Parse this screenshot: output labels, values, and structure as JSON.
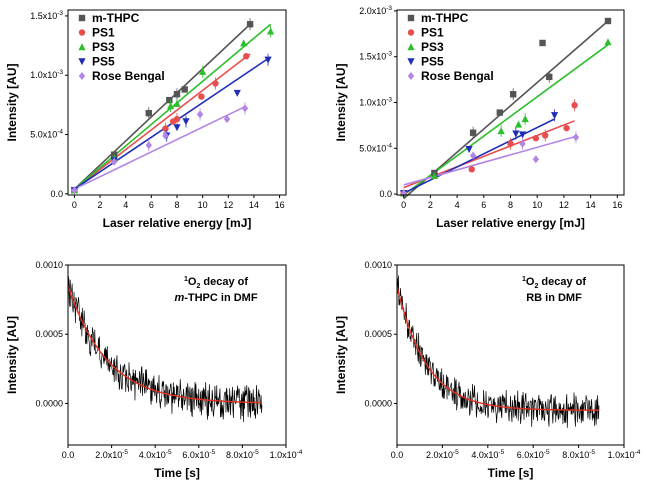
{
  "chart_data": [
    {
      "type": "scatter",
      "panel": "top-left",
      "xlabel": "Laser relative energy [mJ]",
      "ylabel": "Intensity [AU]",
      "xlim": [
        -0.5,
        16.5
      ],
      "ylim": [
        -1e-05,
        0.00155
      ],
      "xticks": [
        0,
        2,
        4,
        6,
        8,
        10,
        12,
        14,
        16
      ],
      "yticks": [
        {
          "value": 0,
          "label": "0.0"
        },
        {
          "value": 0.0005,
          "label": "5.0x10-4"
        },
        {
          "value": 0.001,
          "label": "1.0x10-3"
        },
        {
          "value": 0.0015,
          "label": "1.5x10-3"
        }
      ],
      "legend_position": "top-left",
      "series": [
        {
          "name": "m-THPC",
          "color": "#555555",
          "marker": "square",
          "x": [
            0,
            3.1,
            5.8,
            7.4,
            8.0,
            8.6,
            13.7
          ],
          "y": [
            3e-05,
            0.00033,
            0.00068,
            0.00079,
            0.00084,
            0.00088,
            0.00143
          ],
          "fit": [
            [
              0,
              4e-05
            ],
            [
              13.7,
              0.00143
            ]
          ]
        },
        {
          "name": "PS1",
          "color": "#e84e4e",
          "marker": "circle",
          "x": [
            0,
            3.1,
            7.1,
            7.7,
            8.0,
            9.9,
            11.0,
            13.4
          ],
          "y": [
            3e-05,
            0.00028,
            0.00055,
            0.00061,
            0.00063,
            0.00082,
            0.00093,
            0.00116
          ],
          "fit": [
            [
              0,
              4e-05
            ],
            [
              13.7,
              0.00118
            ]
          ]
        },
        {
          "name": "PS3",
          "color": "#2bbf2b",
          "marker": "triangle-up",
          "x": [
            0,
            3.1,
            7.5,
            8.0,
            10.0,
            13.2,
            15.3
          ],
          "y": [
            3e-05,
            0.0003,
            0.00074,
            0.00076,
            0.00103,
            0.00127,
            0.00137
          ],
          "fit": [
            [
              0,
              4e-05
            ],
            [
              15.3,
              0.00143
            ]
          ]
        },
        {
          "name": "PS5",
          "color": "#1f2db8",
          "marker": "triangle-down",
          "x": [
            0,
            3.1,
            7.2,
            8.0,
            8.7,
            12.7,
            15.1
          ],
          "y": [
            3e-05,
            0.00028,
            0.00049,
            0.00056,
            0.00061,
            0.00085,
            0.00113
          ],
          "fit": [
            [
              0,
              4e-05
            ],
            [
              15.1,
              0.00114
            ]
          ]
        },
        {
          "name": "Rose Bengal",
          "color": "#b385e6",
          "marker": "diamond",
          "x": [
            0,
            3.1,
            5.8,
            7.1,
            9.8,
            11.9,
            13.3
          ],
          "y": [
            3e-05,
            0.00027,
            0.00041,
            0.00049,
            0.00067,
            0.00063,
            0.00072
          ],
          "fit": [
            [
              0,
              4e-05
            ],
            [
              13.4,
              0.00074
            ]
          ]
        }
      ]
    },
    {
      "type": "scatter",
      "panel": "top-right",
      "xlabel": "Laser relative energy [mJ]",
      "ylabel": "Intensity [AU]",
      "xlim": [
        -0.5,
        16.5
      ],
      "ylim": [
        -1e-05,
        0.00201
      ],
      "xticks": [
        0,
        2,
        4,
        6,
        8,
        10,
        12,
        14,
        16
      ],
      "yticks": [
        {
          "value": 0,
          "label": "0.0"
        },
        {
          "value": 0.0005,
          "label": "5.0x10-4"
        },
        {
          "value": 0.001,
          "label": "1.0x10-3"
        },
        {
          "value": 0.0015,
          "label": "1.5x10-3"
        },
        {
          "value": 0.002,
          "label": "2.0x10-3"
        }
      ],
      "legend_position": "top-left",
      "series": [
        {
          "name": "m-THPC",
          "color": "#555555",
          "marker": "square",
          "x": [
            0,
            2.3,
            5.2,
            7.2,
            8.2,
            10.4,
            10.9,
            15.3
          ],
          "y": [
            1e-05,
            0.00023,
            0.00067,
            0.00089,
            0.00109,
            0.00165,
            0.00128,
            0.00189
          ],
          "fit": [
            [
              0,
              -5e-05
            ],
            [
              15.3,
              0.00189
            ]
          ]
        },
        {
          "name": "PS1",
          "color": "#e84e4e",
          "marker": "circle",
          "x": [
            0,
            5.1,
            8.0,
            9.9,
            10.6,
            12.2,
            12.8
          ],
          "y": [
            1e-05,
            0.00027,
            0.00055,
            0.00061,
            0.00064,
            0.00072,
            0.00097
          ],
          "fit": [
            [
              0,
              7e-05
            ],
            [
              12.8,
              0.0008
            ]
          ]
        },
        {
          "name": "PS3",
          "color": "#2bbf2b",
          "marker": "triangle-up",
          "x": [
            0,
            2.3,
            7.3,
            8.6,
            9.1,
            15.3
          ],
          "y": [
            1e-05,
            0.0002,
            0.00069,
            0.00076,
            0.00082,
            0.00166
          ],
          "fit": [
            [
              0,
              -1e-05
            ],
            [
              15.3,
              0.00163
            ]
          ]
        },
        {
          "name": "PS5",
          "color": "#1f2db8",
          "marker": "triangle-down",
          "x": [
            0,
            4.9,
            8.4,
            8.9,
            11.3
          ],
          "y": [
            1e-05,
            0.00049,
            0.00066,
            0.00065,
            0.00086
          ],
          "fit": [
            [
              0,
              1e-05
            ],
            [
              11.3,
              0.00082
            ]
          ]
        },
        {
          "name": "Rose Bengal",
          "color": "#b385e6",
          "marker": "diamond",
          "x": [
            0,
            5.2,
            8.9,
            9.9,
            12.9
          ],
          "y": [
            1e-05,
            0.00042,
            0.00055,
            0.00038,
            0.00062
          ],
          "fit": [
            [
              0,
              0.0001
            ],
            [
              12.9,
              0.00063
            ]
          ]
        }
      ]
    },
    {
      "type": "line",
      "panel": "bottom-left",
      "annotation_lines": [
        "1O2 decay of",
        "m-THPC in DMF"
      ],
      "xlabel": "Time [s]",
      "ylabel": "Intensity [AU]",
      "xlim": [
        0,
        0.0001
      ],
      "ylim": [
        -0.0003,
        0.001
      ],
      "xticks": [
        {
          "value": 0,
          "label": "0.0"
        },
        {
          "value": 2e-05,
          "label": "2.0x10-5"
        },
        {
          "value": 4e-05,
          "label": "4.0x10-5"
        },
        {
          "value": 6e-05,
          "label": "6.0x10-5"
        },
        {
          "value": 8e-05,
          "label": "8.0x10-5"
        },
        {
          "value": 0.0001,
          "label": "1.0x10-4"
        }
      ],
      "yticks": [
        {
          "value": 0,
          "label": "0.0000"
        },
        {
          "value": 0.0005,
          "label": "0.0005"
        },
        {
          "value": 0.001,
          "label": "0.0010"
        }
      ],
      "trace_color": "#000000",
      "fit_color": "#e03020",
      "decay": {
        "amplitude": 0.00085,
        "tau": 1.8e-05,
        "offset": 0.0,
        "t_start": 0.0,
        "t_end": 8.9e-05,
        "noise": 0.00012
      }
    },
    {
      "type": "line",
      "panel": "bottom-right",
      "annotation_lines": [
        "1O2 decay of",
        "RB in DMF"
      ],
      "xlabel": "Time [s]",
      "ylabel": "Intensity [AU]",
      "xlim": [
        0,
        0.0001
      ],
      "ylim": [
        -0.0003,
        0.001
      ],
      "xticks": [
        {
          "value": 0,
          "label": "0.0"
        },
        {
          "value": 2e-05,
          "label": "2.0x10-5"
        },
        {
          "value": 4e-05,
          "label": "4.0x10-5"
        },
        {
          "value": 6e-05,
          "label": "6.0x10-5"
        },
        {
          "value": 8e-05,
          "label": "8.0x10-5"
        },
        {
          "value": 0.0001,
          "label": "1.0x10-4"
        }
      ],
      "yticks": [
        {
          "value": 0,
          "label": "0.0000"
        },
        {
          "value": 0.0005,
          "label": "0.0005"
        },
        {
          "value": 0.001,
          "label": "0.0010"
        }
      ],
      "trace_color": "#000000",
      "fit_color": "#e03020",
      "decay": {
        "amplitude": 0.0009,
        "tau": 1.3e-05,
        "offset": -5e-05,
        "t_start": 0.0,
        "t_end": 8.9e-05,
        "noise": 0.00011
      }
    }
  ]
}
